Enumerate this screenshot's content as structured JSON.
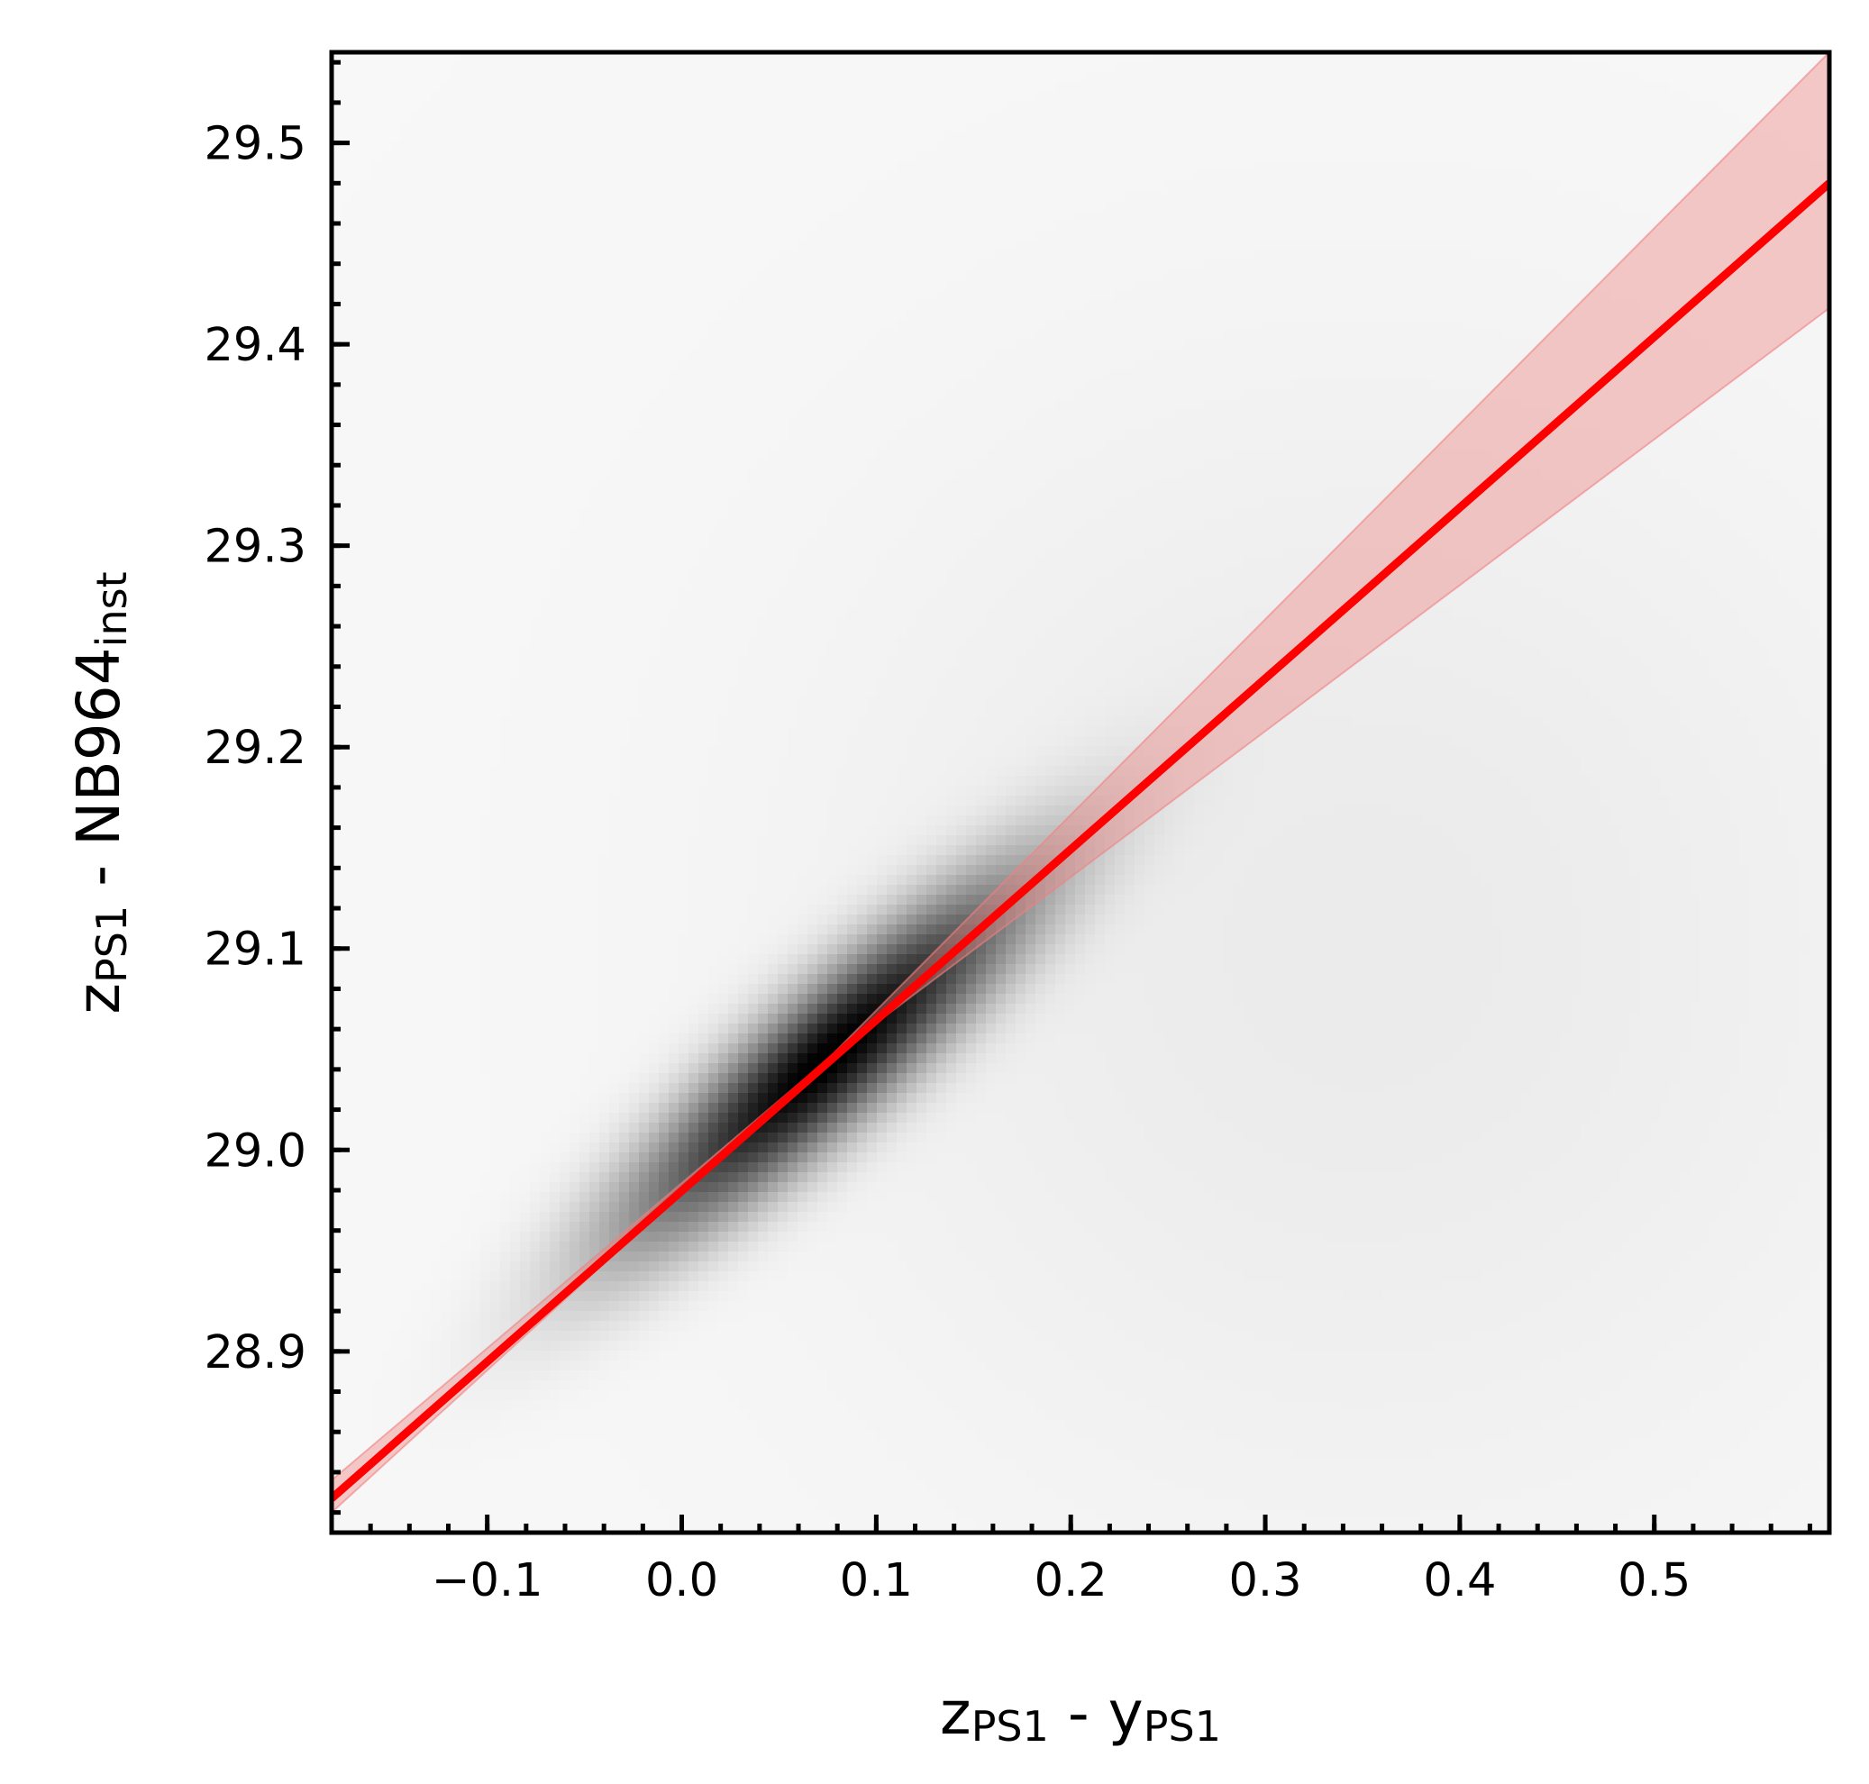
{
  "chart_data": {
    "type": "heatmap",
    "title": "",
    "xlabel": {
      "base": "z",
      "sub1": "PS1",
      "mid": " - y",
      "sub2": "PS1"
    },
    "ylabel": {
      "base": "z",
      "sub1": "PS1",
      "mid": " - NB964",
      "sub2": "inst"
    },
    "xlim": [
      -0.18,
      0.59
    ],
    "ylim": [
      28.81,
      29.545
    ],
    "x_ticks": [
      {
        "value": -0.1,
        "label": "−0.1"
      },
      {
        "value": 0.0,
        "label": "0.0"
      },
      {
        "value": 0.1,
        "label": "0.1"
      },
      {
        "value": 0.2,
        "label": "0.2"
      },
      {
        "value": 0.3,
        "label": "0.3"
      },
      {
        "value": 0.4,
        "label": "0.4"
      },
      {
        "value": 0.5,
        "label": "0.5"
      }
    ],
    "y_ticks": [
      {
        "value": 28.9,
        "label": "28.9"
      },
      {
        "value": 29.0,
        "label": "29.0"
      },
      {
        "value": 29.1,
        "label": "29.1"
      },
      {
        "value": 29.2,
        "label": "29.2"
      },
      {
        "value": 29.3,
        "label": "29.3"
      },
      {
        "value": 29.4,
        "label": "29.4"
      },
      {
        "value": 29.5,
        "label": "29.5"
      }
    ],
    "x_minor_step": 0.02,
    "y_minor_step": 0.02,
    "density": {
      "colormap": "Greys",
      "peak": {
        "x": 0.075,
        "y": 29.045
      },
      "slope": 0.85,
      "sigma_along": 0.085,
      "sigma_across": 0.02,
      "secondary_cloud": {
        "x": 0.35,
        "y": 29.1,
        "sigma_x": 0.2,
        "sigma_y": 0.2,
        "weight": 0.03
      },
      "background": 0.012
    },
    "fit_line": {
      "x": [
        -0.18,
        0.59
      ],
      "y": [
        28.827,
        29.48
      ],
      "color": "#ff0000"
    },
    "confidence_band": {
      "x": [
        -0.18,
        0.075,
        0.59
      ],
      "upper": [
        28.836,
        29.045,
        29.545
      ],
      "lower": [
        28.82,
        29.045,
        29.418
      ],
      "color": "#f08080",
      "opacity": 0.4
    }
  }
}
